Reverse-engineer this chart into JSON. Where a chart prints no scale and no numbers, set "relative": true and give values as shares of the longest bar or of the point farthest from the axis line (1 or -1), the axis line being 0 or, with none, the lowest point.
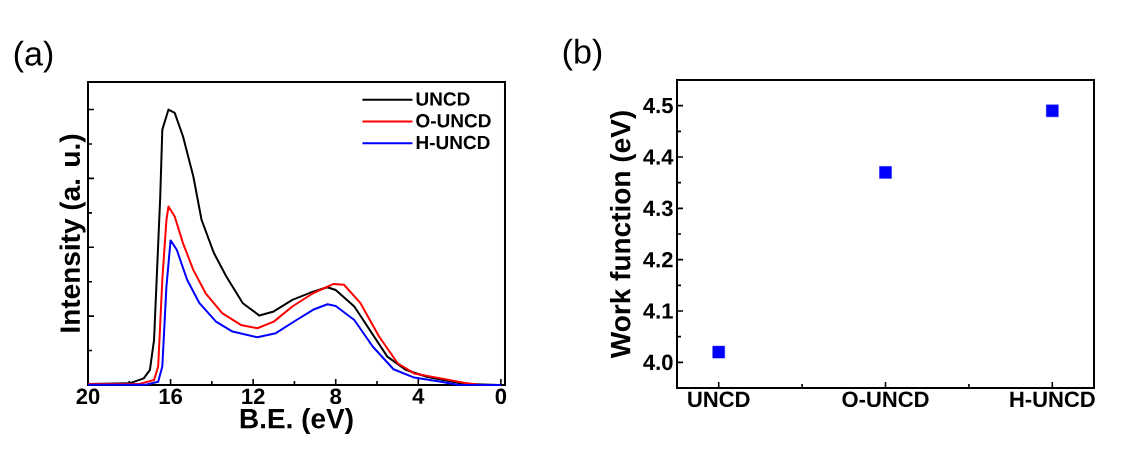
{
  "chart_data": [
    {
      "type": "line",
      "title": "(a)",
      "xlabel": "B.E. (eV)",
      "ylabel": "Intensity (a. u.)",
      "relative": true,
      "xlim": [
        20,
        -0.2
      ],
      "xticks": [
        20,
        16,
        12,
        8,
        4,
        0
      ],
      "legend": "top right",
      "line_style": "solid",
      "marker": "none",
      "series": [
        {
          "name": "UNCD",
          "color": "#000000",
          "x": [
            20,
            18.0,
            17.3,
            17.0,
            16.8,
            16.5,
            16.4,
            16.1,
            15.8,
            15.4,
            14.9,
            14.5,
            13.9,
            13.3,
            12.5,
            11.7,
            11.0,
            10.1,
            9.1,
            8.4,
            8.0,
            7.1,
            6.3,
            5.5,
            4.6,
            3.6,
            2.6,
            1.8,
            0
          ],
          "values": [
            0.004,
            0.006,
            0.024,
            0.055,
            0.164,
            0.685,
            0.927,
            1.0,
            0.988,
            0.903,
            0.758,
            0.6,
            0.479,
            0.394,
            0.297,
            0.252,
            0.267,
            0.309,
            0.339,
            0.355,
            0.345,
            0.285,
            0.194,
            0.103,
            0.055,
            0.03,
            0.015,
            0.004,
            0
          ]
        },
        {
          "name": "O-UNCD",
          "color": "#ff0000",
          "x": [
            20,
            17.5,
            16.8,
            16.6,
            16.4,
            16.2,
            16.1,
            15.8,
            15.4,
            14.9,
            14.3,
            13.5,
            12.6,
            11.8,
            11.0,
            10.1,
            9.1,
            8.1,
            7.6,
            6.8,
            5.9,
            5.0,
            4.2,
            2.9,
            1.8,
            1.0,
            0
          ],
          "values": [
            0.004,
            0.004,
            0.018,
            0.067,
            0.382,
            0.6,
            0.648,
            0.612,
            0.515,
            0.418,
            0.333,
            0.261,
            0.218,
            0.206,
            0.23,
            0.285,
            0.333,
            0.367,
            0.364,
            0.297,
            0.176,
            0.079,
            0.042,
            0.024,
            0.008,
            0,
            0
          ]
        },
        {
          "name": "H-UNCD",
          "color": "#0000ff",
          "x": [
            20,
            17.2,
            16.6,
            16.4,
            16.2,
            16.0,
            15.7,
            15.2,
            14.6,
            13.8,
            13.0,
            11.8,
            10.9,
            9.9,
            9.1,
            8.4,
            8.0,
            7.1,
            6.2,
            5.2,
            4.2,
            2.9,
            2.1,
            0
          ],
          "values": [
            0.001,
            0.001,
            0.012,
            0.067,
            0.358,
            0.525,
            0.491,
            0.382,
            0.297,
            0.23,
            0.194,
            0.173,
            0.188,
            0.236,
            0.273,
            0.293,
            0.287,
            0.236,
            0.139,
            0.057,
            0.027,
            0.012,
            0.001,
            0
          ]
        }
      ]
    },
    {
      "type": "scatter",
      "title": "(b)",
      "ylabel": "Work function (eV)",
      "categories": [
        "UNCD",
        "O-UNCD",
        "H-UNCD"
      ],
      "ylim": [
        3.95,
        4.55
      ],
      "yticks": [
        {
          "value": 4.0,
          "label": "4.0"
        },
        4.1,
        4.2,
        4.3,
        4.4,
        4.5
      ],
      "marker": "square",
      "legend": false,
      "series": [
        {
          "color": "#0000ff",
          "values": [
            4.02,
            4.37,
            4.49
          ]
        }
      ]
    }
  ]
}
